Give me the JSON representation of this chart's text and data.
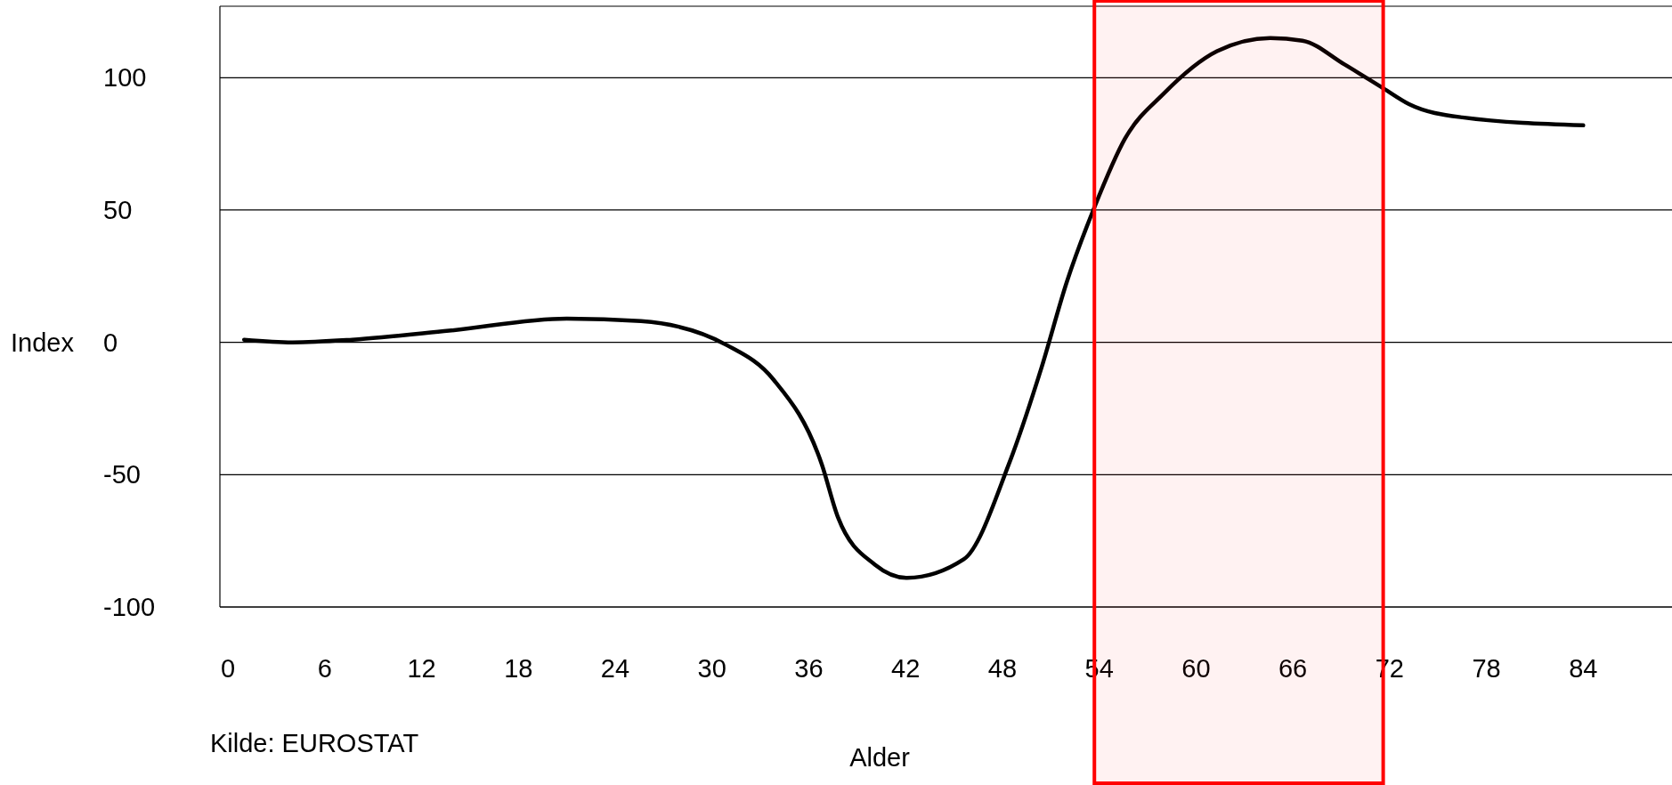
{
  "chart_data": {
    "type": "line",
    "xlabel": "Alder",
    "ylabel": "Index",
    "annotations": [
      "Kilde: EUROSTAT"
    ],
    "xlim": [
      -0.5,
      89.5
    ],
    "ylim": [
      -100,
      127
    ],
    "xticks": [
      0,
      6,
      12,
      18,
      24,
      30,
      36,
      42,
      48,
      54,
      60,
      66,
      72,
      78,
      84
    ],
    "yticks": [
      -100,
      -50,
      0,
      50,
      100
    ],
    "grid": "y",
    "bands": [
      {
        "axis": "x",
        "from": 53.7,
        "to": 71.6,
        "color": "#ff0000"
      }
    ],
    "series": [
      {
        "color": "#000000",
        "x": [
          1,
          4,
          7.7,
          13.7,
          21,
          25.6,
          30.9,
          33.8,
          36.8,
          37.8,
          40.1,
          42.1,
          45.6,
          48.4,
          50.4,
          52,
          53.7,
          55.6,
          58,
          61.3,
          64.6,
          66.6,
          69.2,
          71.6,
          73.2,
          76.5,
          84
        ],
        "values": [
          1,
          0,
          1,
          4.4,
          9,
          8,
          -1,
          -14,
          -46,
          -66,
          -84,
          -89,
          -82,
          -46,
          -10,
          23,
          51,
          77,
          94,
          110,
          115,
          114,
          105,
          96,
          90,
          85,
          82
        ]
      }
    ]
  }
}
